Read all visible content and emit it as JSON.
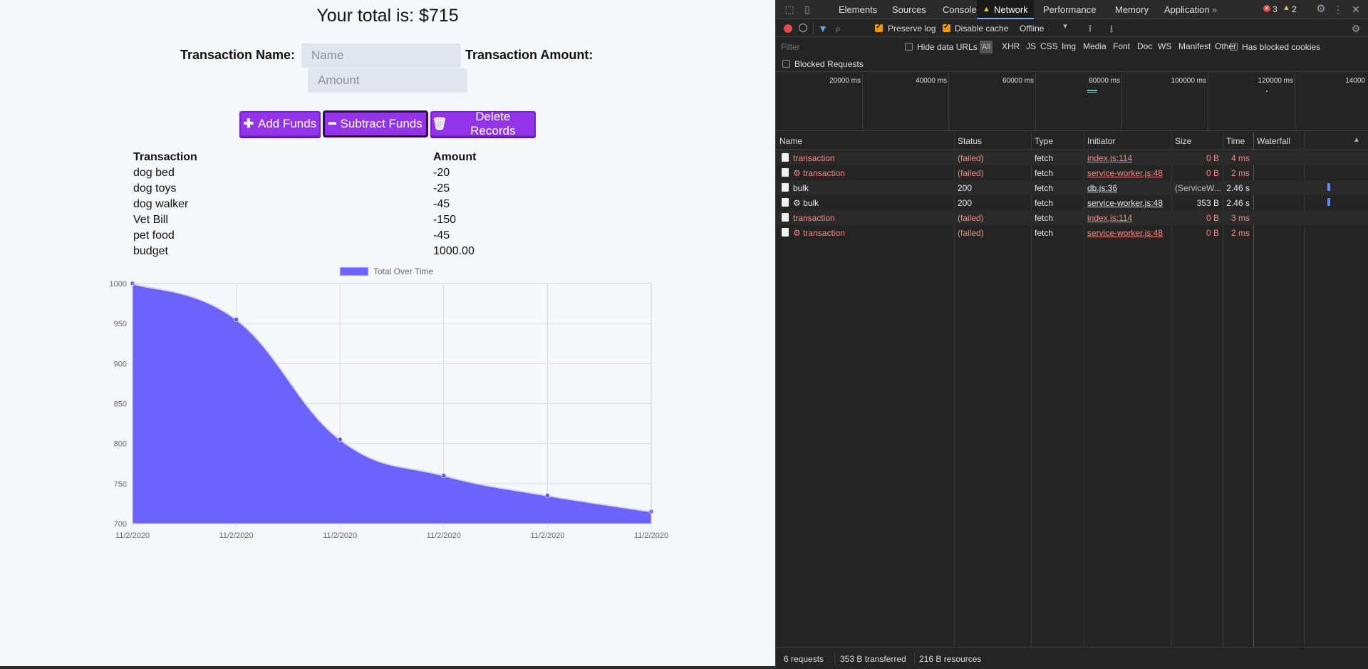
{
  "app": {
    "total_text": "Your total is: $715",
    "form": {
      "name_label": "Transaction Name:",
      "name_placeholder": "Name",
      "amount_label": "Transaction Amount:",
      "amount_placeholder": "Amount"
    },
    "buttons": {
      "add_label": "Add Funds",
      "subtract_label": "Subtract Funds",
      "delete_label": "Delete Records"
    },
    "table": {
      "headers": [
        "Transaction",
        "Amount"
      ],
      "rows": [
        [
          "dog bed",
          "-20"
        ],
        [
          "dog toys",
          "-25"
        ],
        [
          "dog walker",
          "-45"
        ],
        [
          "Vet Bill",
          "-150"
        ],
        [
          "pet food",
          "-45"
        ],
        [
          "budget",
          "1000.00"
        ]
      ]
    }
  },
  "chart_data": {
    "type": "area",
    "series": [
      {
        "name": "Total Over Time",
        "values": [
          1000,
          955,
          805,
          760,
          735,
          715
        ]
      }
    ],
    "x": [
      "11/2/2020",
      "11/2/2020",
      "11/2/2020",
      "11/2/2020",
      "11/2/2020",
      "11/2/2020"
    ],
    "ylim": [
      700,
      1000
    ],
    "yticks": [
      1000,
      950,
      900,
      850,
      800,
      750,
      700
    ],
    "grid": true,
    "legend": "top",
    "fill_color": "#6c63ff"
  },
  "devtools": {
    "tabs": [
      "Elements",
      "Sources",
      "Console",
      "Network",
      "Performance",
      "Memory",
      "Application"
    ],
    "selected_tab": "Network",
    "more_tabs": "»",
    "errors": "3",
    "warnings": "2",
    "toolbar": {
      "preserve_log": "Preserve log",
      "disable_cache": "Disable cache",
      "throttle": "Offline"
    },
    "filter": {
      "placeholder": "Filter",
      "hide_data_urls": "Hide data URLs",
      "all": "All",
      "types": [
        "XHR",
        "JS",
        "CSS",
        "Img",
        "Media",
        "Font",
        "Doc",
        "WS",
        "Manifest",
        "Other"
      ],
      "has_blocked_cookies": "Has blocked cookies",
      "blocked_requests": "Blocked Requests"
    },
    "overview_ticks": [
      "20000 ms",
      "40000 ms",
      "60000 ms",
      "80000 ms",
      "100000 ms",
      "120000 ms",
      "14000"
    ],
    "columns": [
      "Name",
      "Status",
      "Type",
      "Initiator",
      "Size",
      "Time",
      "Waterfall"
    ],
    "requests": [
      {
        "name": "transaction",
        "status": "(failed)",
        "type": "fetch",
        "initiator": "index.js:114",
        "size": "0 B",
        "time": "4 ms",
        "failed": true,
        "gear": false
      },
      {
        "name": "⚙ transaction",
        "status": "(failed)",
        "type": "fetch",
        "initiator": "service-worker.js:48",
        "size": "0 B",
        "time": "2 ms",
        "failed": true,
        "gear": true
      },
      {
        "name": "bulk",
        "status": "200",
        "type": "fetch",
        "initiator": "db.js:36",
        "size": "(ServiceW...",
        "time": "2.46 s",
        "failed": false,
        "gear": false
      },
      {
        "name": "⚙ bulk",
        "status": "200",
        "type": "fetch",
        "initiator": "service-worker.js:48",
        "size": "353 B",
        "time": "2.46 s",
        "failed": false,
        "gear": true
      },
      {
        "name": "transaction",
        "status": "(failed)",
        "type": "fetch",
        "initiator": "index.js:114",
        "size": "0 B",
        "time": "3 ms",
        "failed": true,
        "gear": false
      },
      {
        "name": "⚙ transaction",
        "status": "(failed)",
        "type": "fetch",
        "initiator": "service-worker.js:48",
        "size": "0 B",
        "time": "2 ms",
        "failed": true,
        "gear": true
      }
    ],
    "status_bar": {
      "requests": "6 requests",
      "transferred": "353 B transferred",
      "resources": "216 B resources"
    }
  }
}
